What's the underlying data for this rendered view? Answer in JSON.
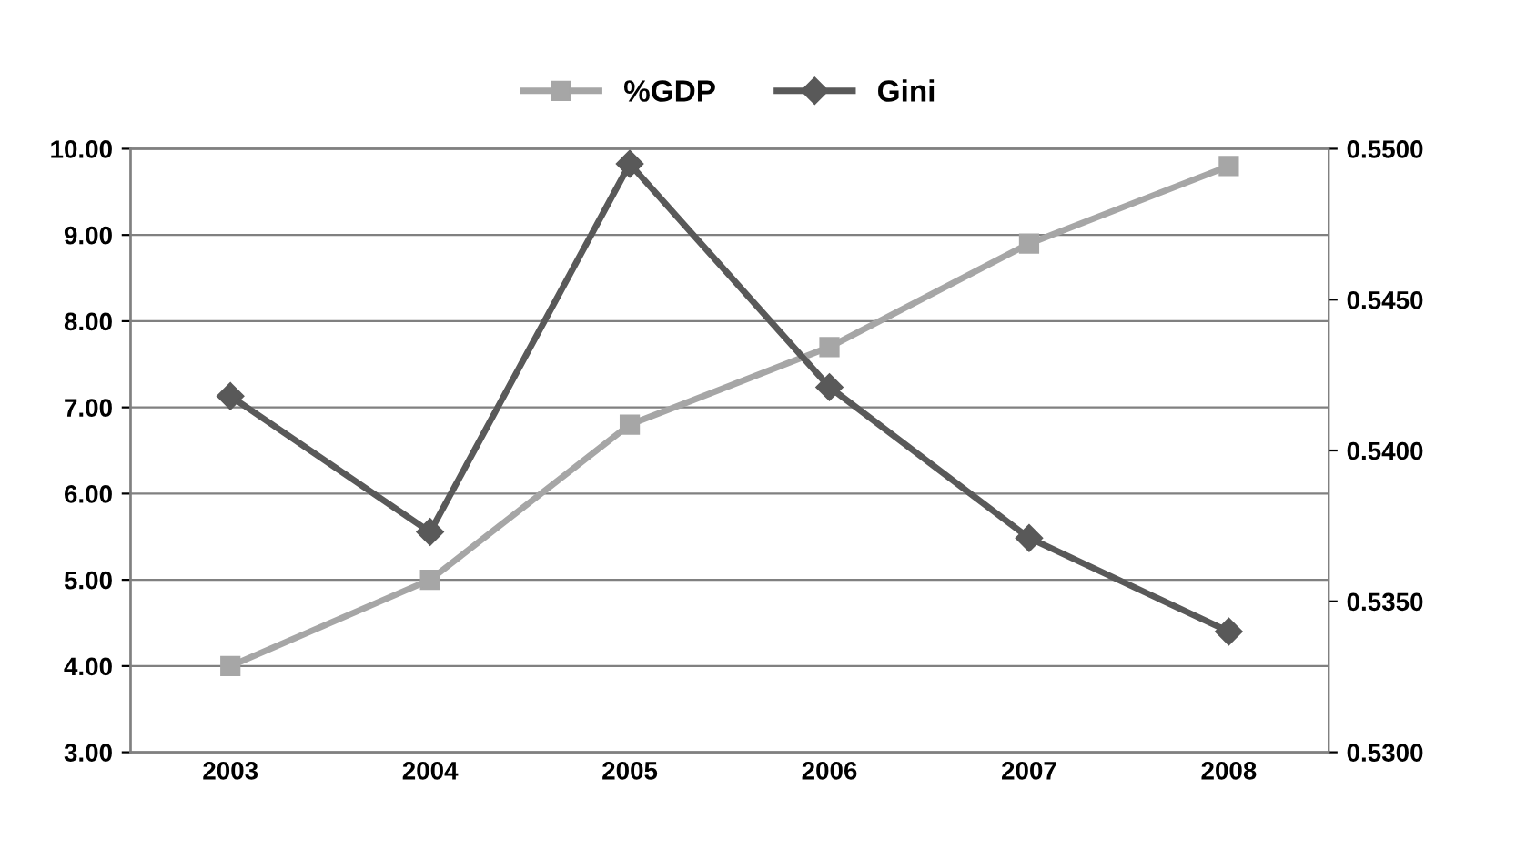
{
  "chart_data": {
    "type": "line",
    "categories": [
      "2003",
      "2004",
      "2005",
      "2006",
      "2007",
      "2008"
    ],
    "series": [
      {
        "name": "%GDP",
        "color": "#a6a6a6",
        "marker": "square",
        "values": [
          4.0,
          5.0,
          6.8,
          7.7,
          8.9,
          9.8
        ]
      },
      {
        "name": "Gini",
        "color": "#595959",
        "marker": "diamond",
        "axis": "y2",
        "values": [
          0.5418,
          0.5373,
          0.5495,
          0.5421,
          0.5371,
          0.534
        ]
      }
    ],
    "ylim": [
      3,
      10
    ],
    "yticks": [
      {
        "value": 3,
        "label": "3.00"
      },
      {
        "value": 4,
        "label": "4.00"
      },
      {
        "value": 5,
        "label": "5.00"
      },
      {
        "value": 6,
        "label": "6.00"
      },
      {
        "value": 7,
        "label": "7.00"
      },
      {
        "value": 8,
        "label": "8.00"
      },
      {
        "value": 9,
        "label": "9.00"
      },
      {
        "value": 10,
        "label": "10.00"
      }
    ],
    "y2lim": [
      0.53,
      0.55
    ],
    "y2ticks": [
      {
        "value": 0.53,
        "label": "0.5300"
      },
      {
        "value": 0.535,
        "label": "0.5350"
      },
      {
        "value": 0.54,
        "label": "0.5400"
      },
      {
        "value": 0.545,
        "label": "0.5450"
      },
      {
        "value": 0.55,
        "label": "0.5500"
      }
    ],
    "grid": "y",
    "legend": "top",
    "line_style": "solid"
  }
}
